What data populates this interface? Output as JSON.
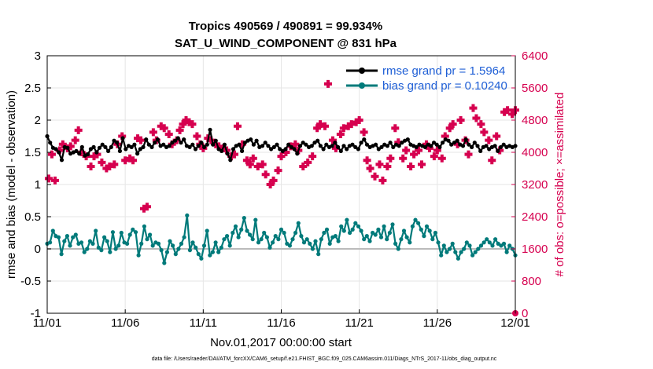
{
  "colors": {
    "rmse": "#000000",
    "bias": "#007a7a",
    "obs": "#d6004f",
    "zero": "#bbbbbb",
    "legend_text": "#1f5fd6"
  },
  "chart_data": {
    "type": "line",
    "title": "Tropics 490569 / 490891 = 99.934%",
    "subtitle": "SAT_U_WIND_COMPONENT @ 831 hPa",
    "xlabel": "Nov.01,2017 00:00:00 start",
    "ylabel": "rmse and bias (model - observation)",
    "ylabel_right": "# of obs: o=possible; ×=assimilated",
    "footer": "data file: /Users/raeder/DAI/ATM_forcXX/CAM6_setup/f.e21.FHIST_BGC.f09_025.CAM6assim.011/Diags_NTrS_2017-11/obs_diag_output.nc",
    "x_range_days": [
      0,
      30
    ],
    "ylim": [
      -1,
      3
    ],
    "ylim_right": [
      0,
      6400
    ],
    "x_ticks": [
      {
        "day": 0,
        "label": "11/01"
      },
      {
        "day": 5,
        "label": "11/06"
      },
      {
        "day": 10,
        "label": "11/11"
      },
      {
        "day": 15,
        "label": "11/16"
      },
      {
        "day": 20,
        "label": "11/21"
      },
      {
        "day": 25,
        "label": "11/26"
      },
      {
        "day": 30,
        "label": "12/01"
      }
    ],
    "y_ticks": [
      {
        "value": -1,
        "label": "-1"
      },
      {
        "value": -0.5,
        "label": "-0.5"
      },
      {
        "value": 0,
        "label": "0"
      },
      {
        "value": 0.5,
        "label": "0.5"
      },
      {
        "value": 1,
        "label": "1"
      },
      {
        "value": 1.5,
        "label": "1.5"
      },
      {
        "value": 2,
        "label": "2"
      },
      {
        "value": 2.5,
        "label": "2.5"
      },
      {
        "value": 3,
        "label": "3"
      }
    ],
    "y_ticks_right": [
      {
        "value": 0,
        "label": "0"
      },
      {
        "value": 800,
        "label": "800"
      },
      {
        "value": 1600,
        "label": "1600"
      },
      {
        "value": 2400,
        "label": "2400"
      },
      {
        "value": 3200,
        "label": "3200"
      },
      {
        "value": 4000,
        "label": "4000"
      },
      {
        "value": 4800,
        "label": "4800"
      },
      {
        "value": 5600,
        "label": "5600"
      },
      {
        "value": 6400,
        "label": "6400"
      }
    ],
    "legend": [
      {
        "name": "rmse",
        "label": "rmse grand pr = 1.5964"
      },
      {
        "name": "bias",
        "label": "bias grand pr = 0.10240"
      }
    ],
    "series": [
      {
        "name": "rmse",
        "values": [
          1.75,
          1.65,
          1.57,
          1.55,
          1.5,
          1.38,
          1.58,
          1.57,
          1.48,
          1.5,
          1.52,
          1.48,
          1.58,
          1.45,
          1.47,
          1.55,
          1.58,
          1.5,
          1.57,
          1.62,
          1.58,
          1.52,
          1.58,
          1.68,
          1.65,
          1.52,
          1.72,
          1.55,
          1.6,
          1.58,
          1.62,
          1.48,
          1.55,
          1.58,
          1.7,
          1.62,
          1.58,
          1.65,
          1.7,
          1.6,
          1.62,
          1.58,
          1.6,
          1.65,
          1.68,
          1.72,
          1.65,
          1.7,
          1.6,
          1.58,
          1.62,
          1.55,
          1.6,
          1.65,
          1.58,
          1.62,
          1.85,
          1.62,
          1.68,
          1.55,
          1.52,
          1.62,
          1.48,
          1.38,
          1.55,
          1.6,
          1.62,
          1.52,
          1.65,
          1.68,
          1.7,
          1.62,
          1.68,
          1.58,
          1.6,
          1.65,
          1.6,
          1.55,
          1.58,
          1.62,
          1.55,
          1.52,
          1.55,
          1.62,
          1.58,
          1.55,
          1.48,
          1.6,
          1.65,
          1.62,
          1.58,
          1.6,
          1.65,
          1.68,
          1.6,
          1.55,
          1.62,
          1.58,
          1.6,
          1.65,
          1.58,
          1.52,
          1.6,
          1.55,
          1.6,
          1.62,
          1.58,
          1.55,
          1.65,
          1.7,
          1.62,
          1.58,
          1.6,
          1.62,
          1.55,
          1.58,
          1.62,
          1.6,
          1.65,
          1.58,
          1.62,
          1.6,
          1.65,
          1.68,
          1.7,
          1.62,
          1.6,
          1.58,
          1.62,
          1.6,
          1.58,
          1.62,
          1.6,
          1.65,
          1.62,
          1.58,
          1.65,
          1.7,
          1.68,
          1.62,
          1.65,
          1.68,
          1.62,
          1.6,
          1.7,
          1.62,
          1.58,
          1.65,
          1.6,
          1.52,
          1.58,
          1.6,
          1.55,
          1.58,
          1.6,
          1.52,
          1.58,
          1.62,
          1.58,
          1.6,
          1.58,
          1.6
        ]
      },
      {
        "name": "bias",
        "values": [
          0.08,
          0.1,
          0.28,
          0.2,
          0.18,
          -0.08,
          0.12,
          0.2,
          0.05,
          0.18,
          0.22,
          0.08,
          0.1,
          -0.05,
          0.0,
          0.12,
          0.08,
          0.28,
          0.02,
          -0.02,
          0.18,
          0.12,
          -0.05,
          0.26,
          0.0,
          0.05,
          0.25,
          0.1,
          0.08,
          0.22,
          0.3,
          0.26,
          -0.1,
          0.08,
          0.35,
          0.15,
          0.22,
          0.05,
          0.1,
          0.08,
          -0.02,
          -0.22,
          -0.05,
          0.12,
          0.05,
          -0.08,
          0.0,
          0.08,
          0.18,
          0.52,
          -0.02,
          0.1,
          0.02,
          -0.08,
          -0.15,
          0.05,
          0.28,
          -0.1,
          -0.05,
          0.1,
          -0.05,
          0.02,
          0.15,
          0.2,
          0.05,
          0.25,
          0.35,
          0.18,
          0.3,
          0.48,
          0.28,
          0.22,
          0.15,
          0.45,
          0.1,
          0.15,
          0.25,
          0.18,
          0.02,
          0.1,
          0.2,
          0.15,
          0.3,
          0.25,
          0.08,
          0.05,
          0.15,
          0.25,
          0.4,
          0.2,
          0.1,
          0.15,
          0.08,
          0.0,
          0.12,
          -0.08,
          0.15,
          0.25,
          0.3,
          0.08,
          0.18,
          0.2,
          0.12,
          0.35,
          0.28,
          0.45,
          0.25,
          0.3,
          0.4,
          0.35,
          0.28,
          0.15,
          0.2,
          0.12,
          0.25,
          0.22,
          0.3,
          0.18,
          0.35,
          0.15,
          0.25,
          0.38,
          0.08,
          0.0,
          0.15,
          0.28,
          0.18,
          0.1,
          0.35,
          0.45,
          0.4,
          0.3,
          0.2,
          0.35,
          0.28,
          0.15,
          0.25,
          0.1,
          -0.1,
          0.05,
          -0.05,
          0.0,
          0.08,
          -0.05,
          -0.15,
          -0.05,
          0.0,
          0.1,
          0.05,
          -0.1,
          -0.05,
          0.0,
          0.05,
          0.1,
          0.15,
          0.1,
          0.05,
          0.15,
          0.08,
          0.05,
          0.08,
          -0.05,
          0.05,
          0.0,
          -0.1
        ]
      },
      {
        "name": "obs_assimilated",
        "points": [
          [
            0.1,
            3350
          ],
          [
            0.3,
            3950
          ],
          [
            0.5,
            3300
          ],
          [
            0.8,
            4050
          ],
          [
            1.0,
            4200
          ],
          [
            1.3,
            4100
          ],
          [
            1.5,
            4150
          ],
          [
            1.8,
            4300
          ],
          [
            2.0,
            4550
          ],
          [
            2.2,
            4000
          ],
          [
            2.5,
            3900
          ],
          [
            2.8,
            3650
          ],
          [
            3.0,
            3900
          ],
          [
            3.2,
            3950
          ],
          [
            3.5,
            3750
          ],
          [
            3.8,
            3600
          ],
          [
            4.0,
            3650
          ],
          [
            4.3,
            3700
          ],
          [
            4.5,
            4200
          ],
          [
            4.8,
            4400
          ],
          [
            5.0,
            3800
          ],
          [
            5.3,
            3850
          ],
          [
            5.5,
            3800
          ],
          [
            5.8,
            4350
          ],
          [
            6.0,
            4300
          ],
          [
            6.2,
            2600
          ],
          [
            6.4,
            2650
          ],
          [
            6.8,
            4500
          ],
          [
            7.0,
            4300
          ],
          [
            7.3,
            4650
          ],
          [
            7.5,
            4600
          ],
          [
            7.8,
            4450
          ],
          [
            8.0,
            4200
          ],
          [
            8.3,
            4300
          ],
          [
            8.5,
            4550
          ],
          [
            8.7,
            4700
          ],
          [
            8.9,
            4800
          ],
          [
            9.1,
            4750
          ],
          [
            9.3,
            4700
          ],
          [
            9.6,
            4400
          ],
          [
            9.8,
            4200
          ],
          [
            10.0,
            4100
          ],
          [
            10.3,
            4350
          ],
          [
            10.5,
            4300
          ],
          [
            10.8,
            4200
          ],
          [
            11.0,
            4150
          ],
          [
            11.3,
            4100
          ],
          [
            11.5,
            4050
          ],
          [
            11.8,
            3900
          ],
          [
            12.0,
            3950
          ],
          [
            12.2,
            4650
          ],
          [
            12.5,
            4200
          ],
          [
            12.8,
            3800
          ],
          [
            13.0,
            3700
          ],
          [
            13.2,
            3850
          ],
          [
            13.5,
            3650
          ],
          [
            13.8,
            3700
          ],
          [
            14.0,
            3450
          ],
          [
            14.3,
            3200
          ],
          [
            14.5,
            3300
          ],
          [
            14.8,
            3550
          ],
          [
            15.0,
            3900
          ],
          [
            15.3,
            4000
          ],
          [
            15.6,
            4150
          ],
          [
            15.9,
            4200
          ],
          [
            16.1,
            4050
          ],
          [
            16.4,
            3650
          ],
          [
            16.7,
            3750
          ],
          [
            17.0,
            3900
          ],
          [
            17.3,
            4600
          ],
          [
            17.5,
            4700
          ],
          [
            17.8,
            4650
          ],
          [
            18.0,
            5700
          ],
          [
            18.3,
            4300
          ],
          [
            18.5,
            4100
          ],
          [
            18.8,
            4450
          ],
          [
            19.0,
            4600
          ],
          [
            19.3,
            4650
          ],
          [
            19.5,
            4700
          ],
          [
            19.8,
            4750
          ],
          [
            20.0,
            4800
          ],
          [
            20.3,
            4500
          ],
          [
            20.5,
            3800
          ],
          [
            20.7,
            3600
          ],
          [
            21.0,
            3400
          ],
          [
            21.3,
            3700
          ],
          [
            21.5,
            3300
          ],
          [
            21.8,
            3650
          ],
          [
            22.0,
            3850
          ],
          [
            22.3,
            4600
          ],
          [
            22.5,
            4250
          ],
          [
            22.8,
            3850
          ],
          [
            23.0,
            4050
          ],
          [
            23.3,
            3650
          ],
          [
            23.5,
            3950
          ],
          [
            23.8,
            4050
          ],
          [
            24.0,
            3700
          ],
          [
            24.3,
            4200
          ],
          [
            24.5,
            4100
          ],
          [
            24.8,
            3900
          ],
          [
            25.0,
            4050
          ],
          [
            25.3,
            3850
          ],
          [
            25.5,
            4400
          ],
          [
            25.8,
            4600
          ],
          [
            26.0,
            4700
          ],
          [
            26.3,
            4200
          ],
          [
            26.5,
            4800
          ],
          [
            26.8,
            4300
          ],
          [
            27.0,
            3950
          ],
          [
            27.3,
            5100
          ],
          [
            27.5,
            4850
          ],
          [
            27.8,
            4700
          ],
          [
            28.0,
            4500
          ],
          [
            28.3,
            4300
          ],
          [
            28.5,
            3800
          ],
          [
            28.8,
            4400
          ],
          [
            29.0,
            4050
          ],
          [
            29.3,
            5000
          ],
          [
            29.5,
            5050
          ],
          [
            29.8,
            4950
          ],
          [
            30.0,
            5050
          ]
        ]
      }
    ],
    "obs_possible_marker": {
      "day": 30,
      "value": 0
    }
  }
}
